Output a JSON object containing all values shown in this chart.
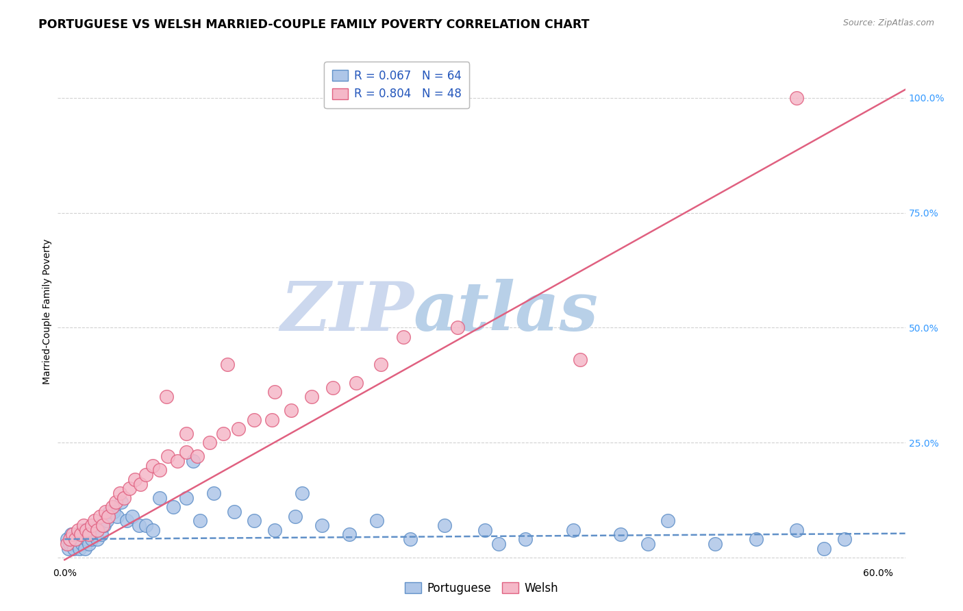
{
  "title": "PORTUGUESE VS WELSH MARRIED-COUPLE FAMILY POVERTY CORRELATION CHART",
  "source": "Source: ZipAtlas.com",
  "ylabel": "Married-Couple Family Poverty",
  "xlim": [
    -0.005,
    0.62
  ],
  "ylim": [
    -0.01,
    1.08
  ],
  "xtick_positions": [
    0.0,
    0.1,
    0.2,
    0.3,
    0.4,
    0.5,
    0.6
  ],
  "xticklabels": [
    "0.0%",
    "",
    "",
    "",
    "",
    "",
    "60.0%"
  ],
  "ytick_positions": [
    0.0,
    0.25,
    0.5,
    0.75,
    1.0
  ],
  "ytick_labels_right": [
    "",
    "25.0%",
    "50.0%",
    "75.0%",
    "100.0%"
  ],
  "portuguese_color": "#aec6e8",
  "welsh_color": "#f5b8c8",
  "portuguese_edge_color": "#6090c8",
  "welsh_edge_color": "#e06080",
  "portuguese_line_color": "#6090c8",
  "welsh_line_color": "#e06080",
  "portuguese_R": 0.067,
  "portuguese_N": 64,
  "welsh_R": 0.804,
  "welsh_N": 48,
  "watermark_zip": "ZIP",
  "watermark_atlas": "atlas",
  "watermark_color_zip": "#ccd8ee",
  "watermark_color_atlas": "#b8d0e8",
  "grid_color": "#cccccc",
  "background_color": "#ffffff",
  "title_fontsize": 12.5,
  "source_fontsize": 9,
  "axis_label_fontsize": 10,
  "tick_fontsize": 10,
  "legend_fontsize": 12,
  "portuguese_scatter_x": [
    0.002,
    0.003,
    0.004,
    0.005,
    0.006,
    0.007,
    0.008,
    0.009,
    0.01,
    0.011,
    0.012,
    0.013,
    0.014,
    0.015,
    0.016,
    0.017,
    0.018,
    0.019,
    0.02,
    0.021,
    0.022,
    0.023,
    0.024,
    0.025,
    0.027,
    0.029,
    0.031,
    0.033,
    0.036,
    0.039,
    0.042,
    0.046,
    0.05,
    0.055,
    0.06,
    0.065,
    0.07,
    0.08,
    0.09,
    0.1,
    0.11,
    0.125,
    0.14,
    0.155,
    0.17,
    0.19,
    0.21,
    0.23,
    0.255,
    0.28,
    0.31,
    0.34,
    0.375,
    0.41,
    0.445,
    0.48,
    0.51,
    0.54,
    0.56,
    0.575,
    0.175,
    0.095,
    0.32,
    0.43
  ],
  "portuguese_scatter_y": [
    0.04,
    0.02,
    0.03,
    0.05,
    0.03,
    0.02,
    0.04,
    0.03,
    0.05,
    0.02,
    0.04,
    0.03,
    0.06,
    0.02,
    0.04,
    0.05,
    0.03,
    0.06,
    0.04,
    0.05,
    0.05,
    0.06,
    0.04,
    0.07,
    0.05,
    0.07,
    0.08,
    0.1,
    0.1,
    0.09,
    0.12,
    0.08,
    0.09,
    0.07,
    0.07,
    0.06,
    0.13,
    0.11,
    0.13,
    0.08,
    0.14,
    0.1,
    0.08,
    0.06,
    0.09,
    0.07,
    0.05,
    0.08,
    0.04,
    0.07,
    0.06,
    0.04,
    0.06,
    0.05,
    0.08,
    0.03,
    0.04,
    0.06,
    0.02,
    0.04,
    0.14,
    0.21,
    0.03,
    0.03
  ],
  "welsh_scatter_x": [
    0.002,
    0.004,
    0.006,
    0.008,
    0.01,
    0.012,
    0.014,
    0.016,
    0.018,
    0.02,
    0.022,
    0.024,
    0.026,
    0.028,
    0.03,
    0.032,
    0.035,
    0.038,
    0.041,
    0.044,
    0.048,
    0.052,
    0.056,
    0.06,
    0.065,
    0.07,
    0.076,
    0.083,
    0.09,
    0.098,
    0.107,
    0.117,
    0.128,
    0.14,
    0.153,
    0.167,
    0.182,
    0.198,
    0.215,
    0.233,
    0.155,
    0.12,
    0.09,
    0.38,
    0.25,
    0.29,
    0.075,
    0.54
  ],
  "welsh_scatter_y": [
    0.03,
    0.04,
    0.05,
    0.04,
    0.06,
    0.05,
    0.07,
    0.06,
    0.05,
    0.07,
    0.08,
    0.06,
    0.09,
    0.07,
    0.1,
    0.09,
    0.11,
    0.12,
    0.14,
    0.13,
    0.15,
    0.17,
    0.16,
    0.18,
    0.2,
    0.19,
    0.22,
    0.21,
    0.23,
    0.22,
    0.25,
    0.27,
    0.28,
    0.3,
    0.3,
    0.32,
    0.35,
    0.37,
    0.38,
    0.42,
    0.36,
    0.42,
    0.27,
    0.43,
    0.48,
    0.5,
    0.35,
    1.0
  ],
  "welsh_line_slope": 1.65,
  "welsh_line_intercept": -0.005,
  "portuguese_line_slope": 0.02,
  "portuguese_line_intercept": 0.04
}
